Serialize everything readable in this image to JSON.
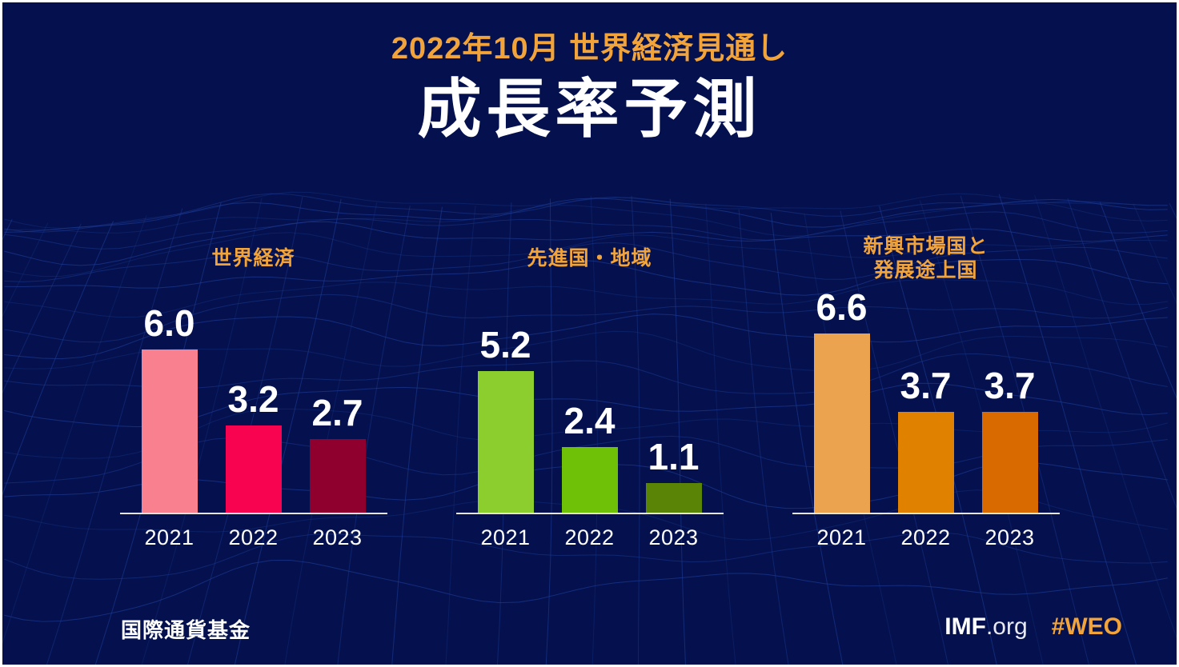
{
  "header": {
    "subtitle": "2022年10月 世界経済見通し",
    "title": "成長率予測"
  },
  "chart_data": {
    "type": "bar",
    "title": "成長率予測",
    "subtitle": "2022年10月 世界経済見通し",
    "unit": "percent",
    "categories": [
      "2021",
      "2022",
      "2023"
    ],
    "ylim": [
      0,
      7
    ],
    "grid": false,
    "legend": "none",
    "groups": [
      {
        "label": "世界経済",
        "values": [
          6.0,
          3.2,
          2.7
        ],
        "display": [
          "6.0",
          "3.2",
          "2.7"
        ],
        "colors": [
          "#F9818F",
          "#F8034F",
          "#8F002E"
        ]
      },
      {
        "label": "先進国・地域",
        "values": [
          5.2,
          2.4,
          1.1
        ],
        "display": [
          "5.2",
          "2.4",
          "1.1"
        ],
        "colors": [
          "#8DCE2F",
          "#6EC107",
          "#5A8406"
        ]
      },
      {
        "label": "新興市場国と\n発展途上国",
        "values": [
          6.6,
          3.7,
          3.7
        ],
        "display": [
          "6.6",
          "3.7",
          "3.7"
        ],
        "colors": [
          "#EBA34F",
          "#E08200",
          "#D96A00"
        ]
      }
    ]
  },
  "footer": {
    "org": "国際通貨基金",
    "site_bold": "IMF",
    "site_rest": ".org",
    "hashtag": "#WEO"
  },
  "colors": {
    "background": "#04114E",
    "mesh_line": "#1E3C96",
    "accent_orange": "#F2A43A",
    "axis_line": "#E6E6E6",
    "text_white": "#FFFFFF"
  }
}
